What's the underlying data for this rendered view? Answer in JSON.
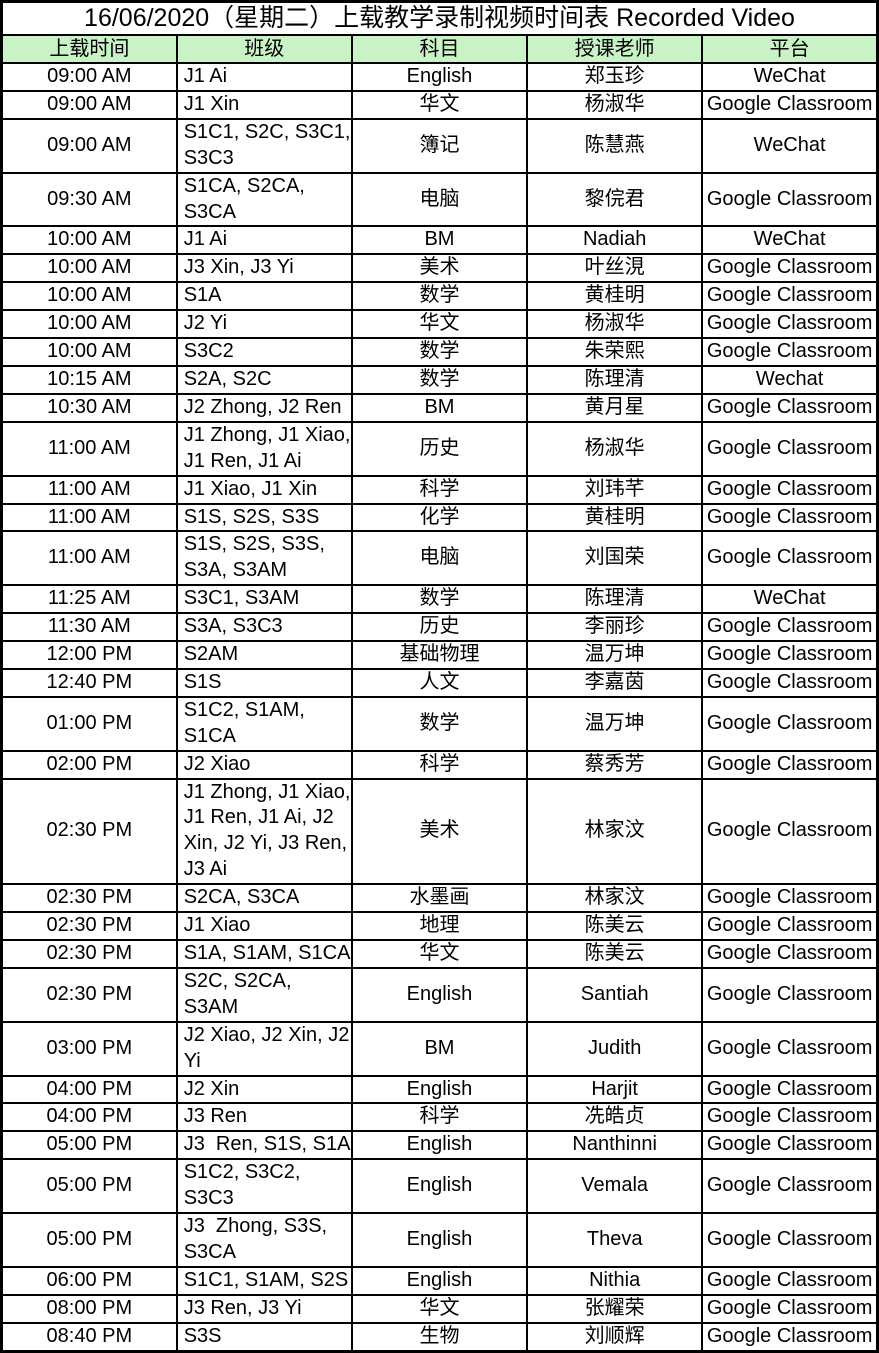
{
  "title": "16/06/2020（星期二）上载教学录制视频时间表 Recorded Video",
  "colors": {
    "header_bg": "#c9f3c6",
    "grid_border": "#000000",
    "cell_bg": "#ffffff"
  },
  "table": {
    "column_keys": [
      "time",
      "class",
      "subject",
      "teacher",
      "platform"
    ],
    "headers": [
      "上载时间",
      "班级",
      "科目",
      "授课老师",
      "平台"
    ],
    "rows": [
      [
        "09:00 AM",
        "J1 Ai",
        "English",
        "郑玉珍",
        "WeChat"
      ],
      [
        "09:00 AM",
        "J1 Xin",
        "华文",
        "杨淑华",
        "Google Classroom"
      ],
      [
        "09:00 AM",
        "S1C1, S2C, S3C1, S3C3",
        "簿记",
        "陈慧燕",
        "WeChat"
      ],
      [
        "09:30 AM",
        "S1CA, S2CA, S3CA",
        "电脑",
        "黎俒君",
        "Google Classroom"
      ],
      [
        "10:00 AM",
        "J1 Ai",
        "BM",
        "Nadiah",
        "WeChat"
      ],
      [
        "10:00 AM",
        "J3 Xin, J3 Yi",
        "美术",
        "叶丝涀",
        "Google Classroom"
      ],
      [
        "10:00 AM",
        "S1A",
        "数学",
        "黄桂明",
        "Google Classroom"
      ],
      [
        "10:00 AM",
        "J2 Yi",
        "华文",
        "杨淑华",
        "Google Classroom"
      ],
      [
        "10:00 AM",
        "S3C2",
        "数学",
        "朱荣熙",
        "Google Classroom"
      ],
      [
        "10:15 AM",
        "S2A, S2C",
        "数学",
        "陈理清",
        "Wechat"
      ],
      [
        "10:30 AM",
        "J2 Zhong, J2 Ren",
        "BM",
        "黄月星",
        "Google Classroom"
      ],
      [
        "11:00 AM",
        "J1 Zhong, J1 Xiao, J1 Ren, J1 Ai",
        "历史",
        "杨淑华",
        "Google Classroom"
      ],
      [
        "11:00 AM",
        "J1 Xiao, J1 Xin",
        "科学",
        "刘玮芊",
        "Google Classroom"
      ],
      [
        "11:00 AM",
        "S1S, S2S, S3S",
        "化学",
        "黄桂明",
        "Google Classroom"
      ],
      [
        "11:00 AM",
        "S1S, S2S, S3S, S3A, S3AM",
        "电脑",
        "刘国荣",
        "Google Classroom"
      ],
      [
        "11:25 AM",
        "S3C1, S3AM",
        "数学",
        "陈理清",
        "WeChat"
      ],
      [
        "11:30 AM",
        "S3A, S3C3",
        "历史",
        "李丽珍",
        "Google Classroom"
      ],
      [
        "12:00 PM",
        "S2AM",
        "基础物理",
        "温万坤",
        "Google Classroom"
      ],
      [
        "12:40 PM",
        "S1S",
        "人文",
        "李嘉茵",
        "Google Classroom"
      ],
      [
        "01:00 PM",
        "S1C2, S1AM, S1CA",
        "数学",
        "温万坤",
        "Google Classroom"
      ],
      [
        "02:00 PM",
        "J2 Xiao",
        "科学",
        "蔡秀芳",
        "Google Classroom"
      ],
      [
        "02:30 PM",
        "J1 Zhong, J1 Xiao, J1 Ren, J1 Ai, J2 Xin, J2 Yi, J3 Ren, J3 Ai",
        "美术",
        "林家汶",
        "Google Classroom"
      ],
      [
        "02:30 PM",
        "S2CA, S3CA",
        "水墨画",
        "林家汶",
        "Google Classroom"
      ],
      [
        "02:30 PM",
        "J1 Xiao",
        "地理",
        "陈美云",
        "Google Classroom"
      ],
      [
        "02:30 PM",
        "S1A, S1AM, S1CA",
        "华文",
        "陈美云",
        "Google Classroom"
      ],
      [
        "02:30 PM",
        "S2C, S2CA, S3AM",
        "English",
        "Santiah",
        "Google Classroom"
      ],
      [
        "03:00 PM",
        "J2 Xiao, J2 Xin, J2 Yi",
        "BM",
        "Judith",
        "Google Classroom"
      ],
      [
        "04:00 PM",
        "J2 Xin",
        "English",
        "Harjit",
        "Google Classroom"
      ],
      [
        "04:00 PM",
        "J3 Ren",
        "科学",
        "冼皓贞",
        "Google Classroom"
      ],
      [
        "05:00 PM",
        "J3  Ren, S1S, S1A",
        "English",
        "Nanthinni",
        "Google Classroom"
      ],
      [
        "05:00 PM",
        "S1C2, S3C2, S3C3",
        "English",
        "Vemala",
        "Google Classroom"
      ],
      [
        "05:00 PM",
        "J3  Zhong, S3S, S3CA",
        "English",
        "Theva",
        "Google Classroom"
      ],
      [
        "06:00 PM",
        "S1C1, S1AM, S2S",
        "English",
        "Nithia",
        "Google Classroom"
      ],
      [
        "08:00 PM",
        "J3 Ren, J3 Yi",
        "华文",
        "张耀荣",
        "Google Classroom"
      ],
      [
        "08:40 PM",
        "S3S",
        "生物",
        "刘顺辉",
        "Google Classroom"
      ]
    ]
  }
}
